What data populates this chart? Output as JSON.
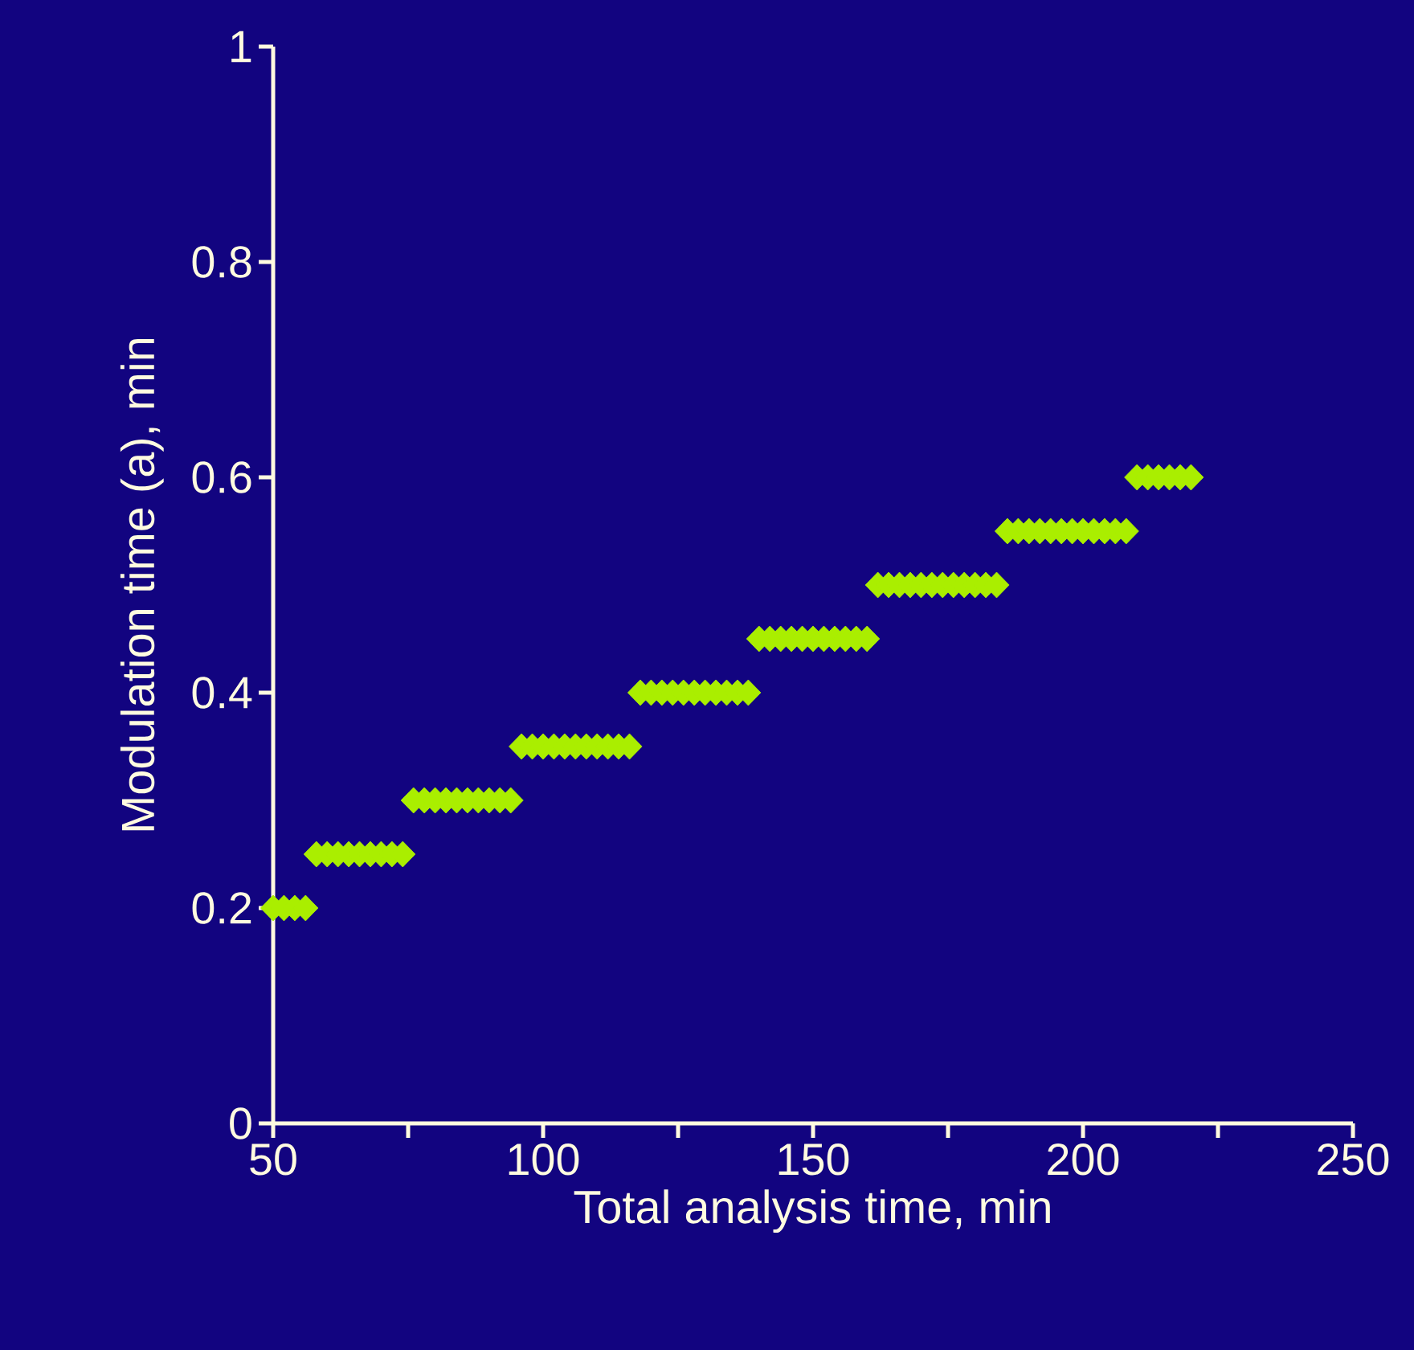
{
  "chart_data": {
    "type": "scatter",
    "xlabel": "Total analysis time, min",
    "ylabel": "Modulation time (a), min",
    "series": [
      {
        "color": "#aaee00",
        "x": [
          50,
          52,
          54,
          56,
          58,
          60,
          62,
          64,
          66,
          68,
          70,
          72,
          74,
          76,
          78,
          80,
          82,
          84,
          86,
          88,
          90,
          92,
          94,
          96,
          98,
          100,
          102,
          104,
          106,
          108,
          110,
          112,
          114,
          116,
          118,
          120,
          122,
          124,
          126,
          128,
          130,
          132,
          134,
          136,
          138,
          140,
          142,
          144,
          146,
          148,
          150,
          152,
          154,
          156,
          158,
          160,
          162,
          164,
          166,
          168,
          170,
          172,
          174,
          176,
          178,
          180,
          182,
          184,
          186,
          188,
          190,
          192,
          194,
          196,
          198,
          200,
          202,
          204,
          206,
          208,
          210,
          212,
          214,
          216,
          218,
          220
        ],
        "values": [
          0.2,
          0.2,
          0.2,
          0.2,
          0.25,
          0.25,
          0.25,
          0.25,
          0.25,
          0.25,
          0.25,
          0.25,
          0.25,
          0.3,
          0.3,
          0.3,
          0.3,
          0.3,
          0.3,
          0.3,
          0.3,
          0.3,
          0.3,
          0.35,
          0.35,
          0.35,
          0.35,
          0.35,
          0.35,
          0.35,
          0.35,
          0.35,
          0.35,
          0.35,
          0.4,
          0.4,
          0.4,
          0.4,
          0.4,
          0.4,
          0.4,
          0.4,
          0.4,
          0.4,
          0.4,
          0.45,
          0.45,
          0.45,
          0.45,
          0.45,
          0.45,
          0.45,
          0.45,
          0.45,
          0.45,
          0.45,
          0.5,
          0.5,
          0.5,
          0.5,
          0.5,
          0.5,
          0.5,
          0.5,
          0.5,
          0.5,
          0.5,
          0.5,
          0.55,
          0.55,
          0.55,
          0.55,
          0.55,
          0.55,
          0.55,
          0.55,
          0.55,
          0.55,
          0.55,
          0.55,
          0.6,
          0.6,
          0.6,
          0.6,
          0.6,
          0.6
        ]
      }
    ],
    "marker": "diamond",
    "grid": false,
    "xlim": [
      50,
      250
    ],
    "xticks": [
      50,
      {
        "value": 75,
        "label": null
      },
      100,
      {
        "value": 125,
        "label": null
      },
      150,
      {
        "value": 175,
        "label": null
      },
      200,
      {
        "value": 225,
        "label": null
      },
      250
    ],
    "ylim": [
      0,
      1
    ],
    "yticks": [
      0,
      0.2,
      0.4,
      0.6,
      0.8,
      1
    ]
  }
}
